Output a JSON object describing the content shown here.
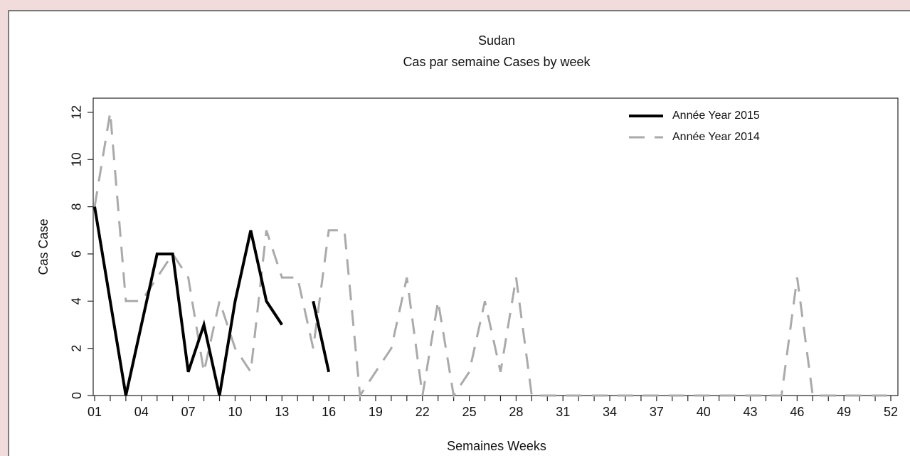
{
  "chart_data": {
    "type": "line",
    "title": "Sudan",
    "subtitle": "Cas par semaine Cases by week",
    "x_label": "Semaines Weeks",
    "y_label": "Cas Case",
    "categories": [
      "01",
      null,
      null,
      "04",
      null,
      null,
      "07",
      null,
      null,
      "10",
      null,
      null,
      "13",
      null,
      null,
      "16",
      null,
      null,
      "19",
      null,
      null,
      "22",
      null,
      null,
      "25",
      null,
      null,
      "28",
      null,
      null,
      "31",
      null,
      null,
      "34",
      null,
      null,
      "37",
      null,
      null,
      "40",
      null,
      null,
      "43",
      null,
      null,
      "46",
      null,
      null,
      "49",
      null,
      null,
      "52"
    ],
    "series": [
      {
        "name": "Année Year 2015",
        "color": "#000000",
        "dash": false,
        "values": [
          8,
          4,
          0,
          3,
          6,
          6,
          1,
          3,
          0,
          4,
          7,
          4,
          3,
          null,
          4,
          1,
          null,
          null,
          null,
          null,
          null,
          null,
          null,
          null,
          null,
          null,
          null,
          null,
          null,
          null,
          null,
          null,
          null,
          null,
          null,
          null,
          null,
          null,
          null,
          null,
          null,
          null,
          null,
          null,
          null,
          null,
          null,
          null,
          null,
          null,
          null,
          null
        ]
      },
      {
        "name": "Année Year 2014",
        "color": "#aaaaaa",
        "dash": true,
        "values": [
          8,
          12,
          4,
          4,
          5,
          6,
          5,
          1,
          4,
          2,
          1,
          7,
          5,
          5,
          2,
          7,
          7,
          0,
          1,
          2,
          5,
          0,
          4,
          0,
          1,
          4,
          1,
          5,
          0,
          0,
          0,
          0,
          0,
          0,
          0,
          0,
          0,
          0,
          0,
          0,
          0,
          0,
          0,
          0,
          0,
          5,
          0,
          0,
          0,
          0,
          0,
          0
        ]
      }
    ],
    "ylim": [
      0,
      12.6
    ],
    "yticks": [
      0,
      2,
      4,
      6,
      8,
      10,
      12
    ],
    "legend": "top-right"
  }
}
